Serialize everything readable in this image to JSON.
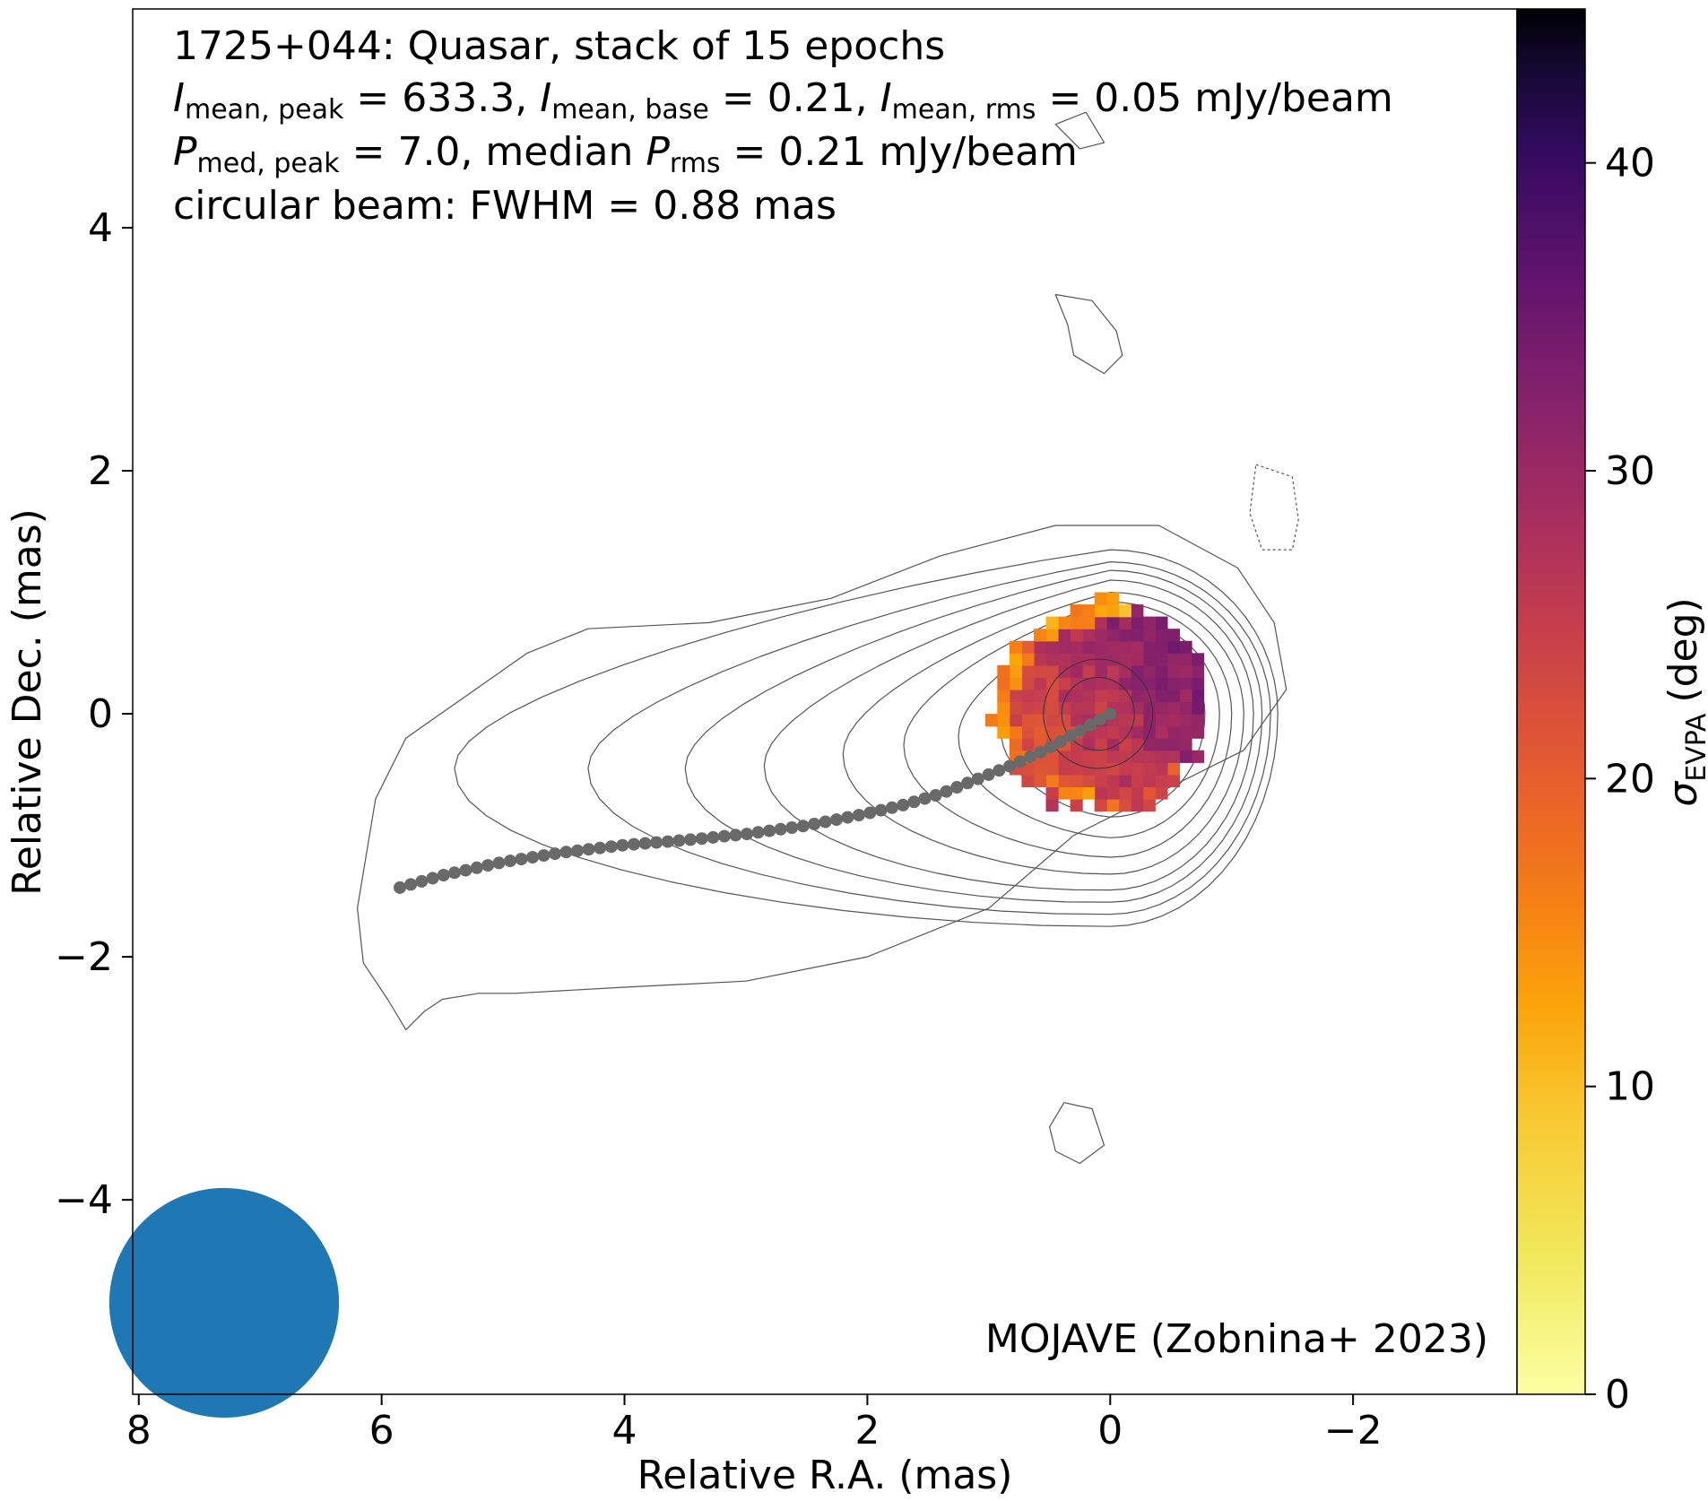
{
  "chart_data": {
    "type": "heatmap",
    "title": "1725+044: Quasar, stack of 15 epochs",
    "stats": {
      "i_mean_peak": "633.3",
      "i_mean_base": "0.21",
      "i_mean_rms": "0.05",
      "p_med_peak": "7.0",
      "p_rms": "0.21",
      "unit": "mJy/beam",
      "beam_line": "circular beam: FWHM = 0.88 mas"
    },
    "labels": {
      "i_sym": "I",
      "p_sym": "P",
      "sub_mean_peak": "mean, peak",
      "sub_mean_base": "mean, base",
      "sub_mean_rms": "mean, rms",
      "sub_med_peak": "med, peak",
      "sub_rms": "rms",
      "eq": " = ",
      "comma": ", ",
      "median_word": ", median "
    },
    "credit": "MOJAVE (Zobnina+ 2023)",
    "xlabel": "Relative R.A. (mas)",
    "ylabel": "Relative Dec. (mas)",
    "xlim": [
      8.05,
      -3.35
    ],
    "ylim": [
      -5.6,
      5.8
    ],
    "x_ticks": [
      8,
      6,
      4,
      2,
      0,
      -2
    ],
    "x_tick_labels": [
      "8",
      "6",
      "4",
      "2",
      "0",
      "−2"
    ],
    "y_ticks": [
      4,
      2,
      0,
      -2,
      -4
    ],
    "y_tick_labels": [
      "4",
      "2",
      "0",
      "−2",
      "−4"
    ],
    "colorbar": {
      "label_sym": "σ",
      "label_sub": "EVPA",
      "label_unit": "(deg)",
      "range": [
        0,
        45
      ],
      "ticks": [
        0,
        10,
        20,
        30,
        40
      ],
      "tick_labels": [
        "0",
        "10",
        "20",
        "30",
        "40"
      ],
      "colormap": "inferno_r"
    },
    "ridge_line": {
      "color": "#696969",
      "x": [
        5.85,
        5.5,
        5.0,
        4.5,
        4.0,
        3.5,
        3.0,
        2.5,
        2.0,
        1.7,
        1.4,
        1.1,
        0.8,
        0.5,
        0.25,
        0.0
      ],
      "y": [
        -1.43,
        -1.33,
        -1.22,
        -1.14,
        -1.08,
        -1.04,
        -0.99,
        -0.92,
        -0.82,
        -0.75,
        -0.66,
        -0.54,
        -0.42,
        -0.28,
        -0.14,
        0.0
      ]
    },
    "polarization_map": {
      "center": [
        0.08,
        0.05
      ],
      "radius": 0.88,
      "pixel_size": 0.1,
      "note_values": "sigma_EVPA mostly 17-35 deg; low (~10-15) along east/north edge, highest (~35) in west-north"
    },
    "beam": {
      "fwhm_mas": 0.88,
      "color": "#1f77b4",
      "position": "bottom-left"
    },
    "contour_color": "#555555"
  }
}
